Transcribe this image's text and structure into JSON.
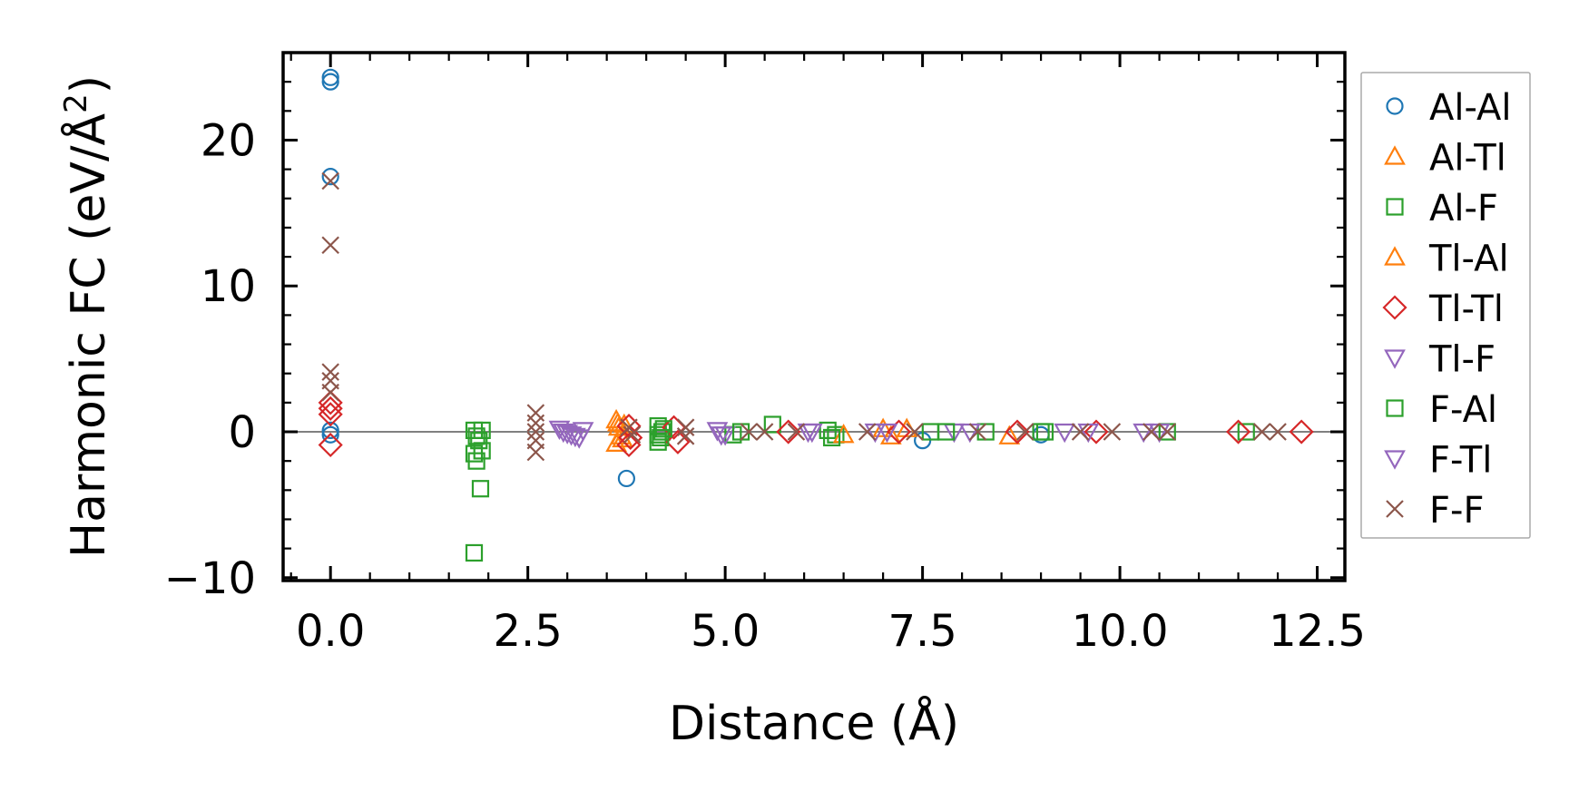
{
  "chart_data": {
    "type": "scatter",
    "title": "",
    "xlabel": "Distance (Å)",
    "ylabel_main": "Harmonic FC (eV/Å",
    "ylabel_sup": "2",
    "ylabel_close": ")",
    "xlim": [
      -0.6,
      12.85
    ],
    "ylim": [
      -10.2,
      26
    ],
    "xticks": [
      0.0,
      2.5,
      5.0,
      7.5,
      10.0,
      12.5
    ],
    "xtick_labels": [
      "0.0",
      "2.5",
      "5.0",
      "7.5",
      "10.0",
      "12.5"
    ],
    "yticks": [
      -10,
      0,
      10,
      20
    ],
    "ytick_labels": [
      "−10",
      "0",
      "10",
      "20"
    ],
    "zero_line": true,
    "legend_position": "outside-right",
    "series": [
      {
        "name": "Al-Al",
        "marker": "circle",
        "color": "#1f77b4",
        "fill": "none",
        "points": [
          [
            0.0,
            24.3
          ],
          [
            0.0,
            24.0
          ],
          [
            0.0,
            17.5
          ],
          [
            0.0,
            0.1
          ],
          [
            0.0,
            -0.2
          ],
          [
            3.75,
            -3.2
          ],
          [
            7.5,
            -0.6
          ],
          [
            9.0,
            -0.2
          ]
        ]
      },
      {
        "name": "Al-Tl",
        "marker": "triangle-up",
        "color": "#ff7f0e",
        "fill": "none",
        "points": [
          [
            3.62,
            0.8
          ],
          [
            3.65,
            0.3
          ],
          [
            3.68,
            -0.3
          ],
          [
            3.62,
            -0.8
          ],
          [
            3.72,
            0.5
          ],
          [
            7.1,
            -0.3
          ],
          [
            7.3,
            0.2
          ],
          [
            8.6,
            -0.3
          ]
        ]
      },
      {
        "name": "Al-F",
        "marker": "square",
        "color": "#2ca02c",
        "fill": "none",
        "points": [
          [
            1.82,
            0.1
          ],
          [
            1.82,
            -1.5
          ],
          [
            1.82,
            -8.3
          ],
          [
            1.88,
            -0.6
          ],
          [
            1.9,
            -3.9
          ],
          [
            1.92,
            0.1
          ],
          [
            1.92,
            -1.3
          ],
          [
            4.15,
            0.4
          ],
          [
            4.15,
            -0.2
          ],
          [
            4.15,
            -0.7
          ],
          [
            4.2,
            0.0
          ],
          [
            5.1,
            -0.2
          ],
          [
            5.6,
            0.5
          ],
          [
            6.3,
            0.1
          ],
          [
            6.4,
            -0.2
          ],
          [
            7.6,
            0.0
          ],
          [
            8.3,
            0.0
          ],
          [
            9.0,
            0.0
          ],
          [
            10.6,
            0.0
          ],
          [
            11.6,
            0.0
          ]
        ]
      },
      {
        "name": "Tl-Al",
        "marker": "triangle-up",
        "color": "#ff7f0e",
        "fill": "none",
        "points": [
          [
            3.64,
            0.6
          ],
          [
            3.7,
            -0.5
          ],
          [
            6.5,
            -0.2
          ],
          [
            7.0,
            0.2
          ]
        ]
      },
      {
        "name": "Tl-Tl",
        "marker": "diamond",
        "color": "#d62728",
        "fill": "none",
        "points": [
          [
            0.0,
            2.0
          ],
          [
            0.0,
            1.6
          ],
          [
            0.0,
            1.2
          ],
          [
            0.0,
            -0.9
          ],
          [
            3.78,
            0.4
          ],
          [
            3.8,
            -0.4
          ],
          [
            3.78,
            -0.9
          ],
          [
            4.35,
            0.3
          ],
          [
            4.4,
            -0.7
          ],
          [
            5.8,
            0.0
          ],
          [
            7.2,
            0.0
          ],
          [
            8.7,
            0.0
          ],
          [
            9.7,
            0.0
          ],
          [
            11.5,
            0.0
          ],
          [
            12.3,
            0.0
          ]
        ]
      },
      {
        "name": "Tl-F",
        "marker": "triangle-down",
        "color": "#9467bd",
        "fill": "none",
        "points": [
          [
            2.9,
            0.2
          ],
          [
            3.0,
            -0.1
          ],
          [
            3.1,
            -0.3
          ],
          [
            3.2,
            0.1
          ],
          [
            4.9,
            0.1
          ],
          [
            5.0,
            -0.2
          ],
          [
            6.1,
            0.0
          ],
          [
            6.9,
            0.0
          ],
          [
            7.9,
            0.0
          ],
          [
            9.3,
            0.0
          ],
          [
            10.3,
            0.0
          ]
        ]
      },
      {
        "name": "F-Al",
        "marker": "square",
        "color": "#2ca02c",
        "fill": "none",
        "points": [
          [
            1.85,
            -0.3
          ],
          [
            1.85,
            -2.0
          ],
          [
            4.18,
            -0.4
          ],
          [
            4.22,
            0.2
          ],
          [
            5.2,
            0.0
          ],
          [
            6.35,
            -0.4
          ],
          [
            7.8,
            0.0
          ],
          [
            9.05,
            0.0
          ]
        ]
      },
      {
        "name": "F-Tl",
        "marker": "triangle-down",
        "color": "#9467bd",
        "fill": "none",
        "points": [
          [
            2.95,
            0.0
          ],
          [
            3.05,
            -0.2
          ],
          [
            3.15,
            -0.4
          ],
          [
            4.95,
            -0.2
          ],
          [
            6.05,
            0.0
          ],
          [
            7.05,
            0.0
          ],
          [
            8.1,
            0.0
          ],
          [
            9.6,
            0.0
          ],
          [
            10.5,
            0.0
          ]
        ]
      },
      {
        "name": "F-F",
        "marker": "x",
        "color": "#8c564b",
        "fill": "none",
        "points": [
          [
            0.0,
            17.2
          ],
          [
            0.0,
            12.8
          ],
          [
            0.0,
            4.1
          ],
          [
            0.0,
            3.5
          ],
          [
            0.0,
            2.7
          ],
          [
            2.6,
            1.3
          ],
          [
            2.6,
            0.6
          ],
          [
            2.6,
            0.0
          ],
          [
            2.6,
            -0.6
          ],
          [
            2.6,
            -1.4
          ],
          [
            3.78,
            0.3
          ],
          [
            3.82,
            -0.2
          ],
          [
            4.5,
            0.3
          ],
          [
            4.5,
            -0.3
          ],
          [
            5.3,
            0.0
          ],
          [
            5.5,
            0.0
          ],
          [
            5.9,
            0.0
          ],
          [
            6.8,
            0.0
          ],
          [
            7.4,
            0.0
          ],
          [
            8.2,
            0.0
          ],
          [
            8.8,
            0.0
          ],
          [
            9.5,
            0.0
          ],
          [
            9.9,
            0.0
          ],
          [
            10.4,
            0.0
          ],
          [
            10.6,
            0.0
          ],
          [
            11.8,
            0.0
          ],
          [
            12.0,
            0.0
          ]
        ]
      }
    ]
  }
}
